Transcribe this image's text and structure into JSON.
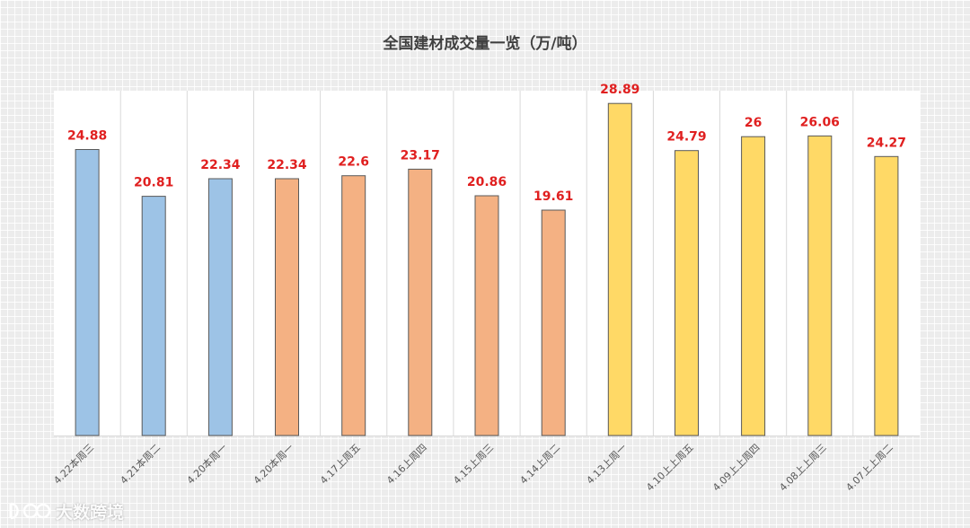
{
  "chart_data": {
    "type": "bar",
    "title": "全国建材成交量一览（万/吨）",
    "categories": [
      "4.22本周三",
      "4.21本周二",
      "4.20本周一",
      "4.20本周一",
      "4.17上周五",
      "4.16上周四",
      "4.15上周三",
      "4.14上周二",
      "4.13上周一",
      "4.10上上周五",
      "4.09上上周四",
      "4.08上上周三",
      "4.07上上周二"
    ],
    "values": [
      24.88,
      20.81,
      22.34,
      22.34,
      22.6,
      23.17,
      20.86,
      19.61,
      28.89,
      24.79,
      26,
      26.06,
      24.27
    ],
    "value_labels": [
      "24.88",
      "20.81",
      "22.34",
      "22.34",
      "22.6",
      "23.17",
      "20.86",
      "19.61",
      "28.89",
      "24.79",
      "26",
      "26.06",
      "24.27"
    ],
    "bar_colors": [
      "#9dc3e6",
      "#9dc3e6",
      "#9dc3e6",
      "#f4b183",
      "#f4b183",
      "#f4b183",
      "#f4b183",
      "#f4b183",
      "#ffd966",
      "#ffd966",
      "#ffd966",
      "#ffd966",
      "#ffd966"
    ],
    "label_color": "#e02020",
    "ylim": [
      0,
      30
    ],
    "grid": "vertical separators between categories",
    "legend": "none"
  },
  "watermark": {
    "text": "大数跨境"
  }
}
